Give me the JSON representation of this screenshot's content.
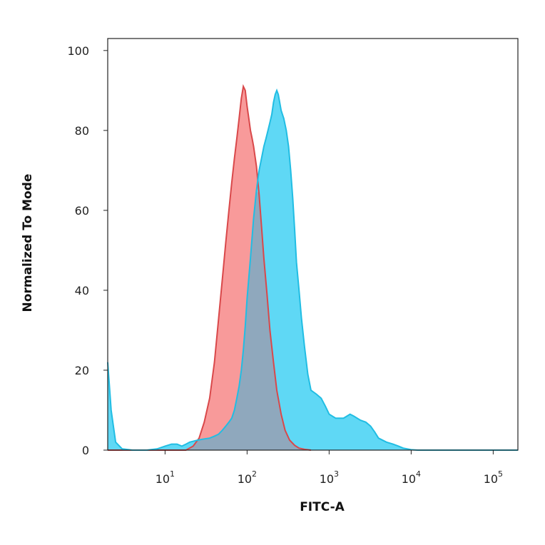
{
  "chart_data": {
    "type": "area",
    "xlabel": "FITC-A",
    "ylabel": "Normalized To Mode",
    "x_scale": "log",
    "xlim": [
      2,
      200000
    ],
    "ylim": [
      0,
      103
    ],
    "grid": false,
    "legend": "none",
    "x_ticks": [
      {
        "base": "10",
        "exp": "1",
        "value": 10
      },
      {
        "base": "10",
        "exp": "2",
        "value": 100
      },
      {
        "base": "10",
        "exp": "3",
        "value": 1000
      },
      {
        "base": "10",
        "exp": "4",
        "value": 10000
      },
      {
        "base": "10",
        "exp": "5",
        "value": 100000
      }
    ],
    "y_ticks": [
      {
        "label": "0",
        "value": 0
      },
      {
        "label": "20",
        "value": 20
      },
      {
        "label": "40",
        "value": 40
      },
      {
        "label": "60",
        "value": 60
      },
      {
        "label": "80",
        "value": 80
      },
      {
        "label": "100",
        "value": 100
      }
    ],
    "series": [
      {
        "fill": "#f89a9a",
        "stroke": "#d9484a",
        "x": [
          2,
          10,
          18,
          22,
          26,
          30,
          35,
          40,
          45,
          50,
          55,
          60,
          65,
          70,
          75,
          80,
          85,
          90,
          95,
          100,
          105,
          110,
          115,
          120,
          130,
          140,
          150,
          160,
          175,
          190,
          210,
          230,
          260,
          290,
          330,
          380,
          430,
          500,
          600
        ],
        "y": [
          0,
          0,
          0,
          1,
          3,
          7,
          13,
          22,
          33,
          43,
          52,
          60,
          67,
          73,
          78,
          83,
          88,
          91,
          90,
          86,
          83,
          80,
          78,
          76,
          71,
          64,
          56,
          48,
          39,
          30,
          22,
          15,
          9,
          5,
          2.5,
          1.2,
          0.5,
          0.2,
          0
        ]
      },
      {
        "fill": "#5fd8f5",
        "stroke": "#21bde3",
        "x": [
          2,
          2.2,
          2.5,
          3,
          4,
          6,
          8,
          10,
          12,
          14,
          16,
          18,
          20,
          25,
          30,
          35,
          40,
          45,
          50,
          55,
          60,
          65,
          70,
          75,
          80,
          85,
          90,
          95,
          100,
          110,
          120,
          130,
          140,
          150,
          160,
          170,
          180,
          190,
          200,
          210,
          220,
          230,
          240,
          250,
          260,
          280,
          300,
          320,
          340,
          360,
          380,
          400,
          430,
          460,
          500,
          550,
          600,
          700,
          800,
          900,
          1000,
          1200,
          1500,
          1800,
          2000,
          2400,
          2800,
          3200,
          3600,
          4000,
          5000,
          6000,
          7000,
          8000,
          9000,
          10000,
          12000,
          15000,
          200000
        ],
        "y": [
          22,
          10,
          2,
          0.3,
          0,
          0,
          0.3,
          1,
          1.5,
          1.5,
          1,
          1.5,
          2,
          2.5,
          2.8,
          3,
          3.5,
          4,
          5,
          6,
          7,
          8,
          10,
          13,
          16,
          20,
          25,
          31,
          38,
          48,
          58,
          65,
          70,
          73,
          76,
          78,
          80,
          82,
          84,
          87,
          89,
          90,
          89,
          87,
          85,
          83,
          80,
          76,
          70,
          63,
          55,
          47,
          40,
          33,
          26,
          19,
          15,
          14,
          13,
          11,
          9,
          8,
          8,
          9,
          8.5,
          7.5,
          7,
          6,
          4.5,
          3,
          2,
          1.5,
          1,
          0.5,
          0.3,
          0.1,
          0,
          0,
          0
        ]
      }
    ]
  }
}
